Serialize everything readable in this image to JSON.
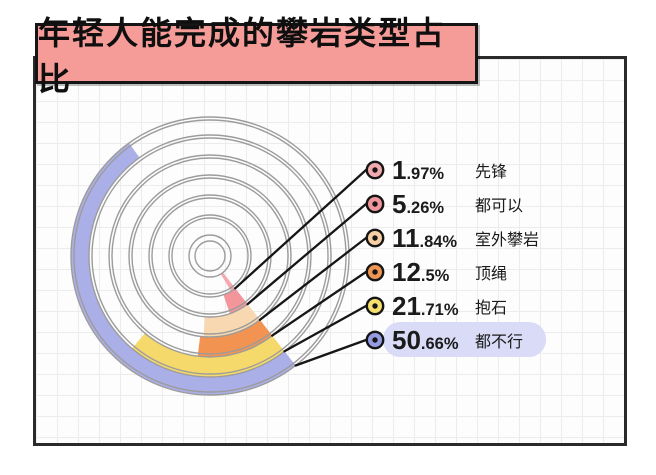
{
  "title": "年轻人能完成的攀岩类型占比",
  "chart_data": {
    "type": "pie",
    "variant": "concentric-annular-arcs",
    "title": "年轻人能完成的攀岩类型占比",
    "categories": [
      "先锋",
      "都可以",
      "室外攀岩",
      "顶绳",
      "抱石",
      "都不行"
    ],
    "values": [
      1.97,
      5.26,
      11.84,
      12.5,
      21.71,
      50.66
    ],
    "unit": "%",
    "legend_position": "right",
    "highlighted_category": "都不行",
    "arc_colors": [
      "#f5a8ad",
      "#f2969b",
      "#f8d8b0",
      "#f29352",
      "#f5d96b",
      "#abafe8"
    ],
    "bullet_colors": [
      "#f2a9ae",
      "#ef959b",
      "#f6cfa4",
      "#ef9553",
      "#f7df6e",
      "#959ce3"
    ],
    "legend": [
      {
        "pct_int": "1",
        "pct_dec": ".97%",
        "label": "先锋",
        "highlighted": false
      },
      {
        "pct_int": "5",
        "pct_dec": ".26%",
        "label": "都可以",
        "highlighted": false
      },
      {
        "pct_int": "11",
        "pct_dec": ".84%",
        "label": "室外攀岩",
        "highlighted": false
      },
      {
        "pct_int": "12",
        "pct_dec": ".5%",
        "label": "顶绳",
        "highlighted": false
      },
      {
        "pct_int": "21",
        "pct_dec": ".71%",
        "label": "抱石",
        "highlighted": false
      },
      {
        "pct_int": "50",
        "pct_dec": ".66%",
        "label": "都不行",
        "highlighted": true
      }
    ]
  },
  "style_colors": {
    "title_bg": "#f59c98",
    "frame_border": "#2a2a2a",
    "grid_line": "#ececec",
    "paper": "#fdfdfd",
    "ring_stroke": "#9c9c9c",
    "leader_line": "#161616",
    "highlight_pill": "#d9dbf7",
    "text": "#1b1b1b"
  }
}
